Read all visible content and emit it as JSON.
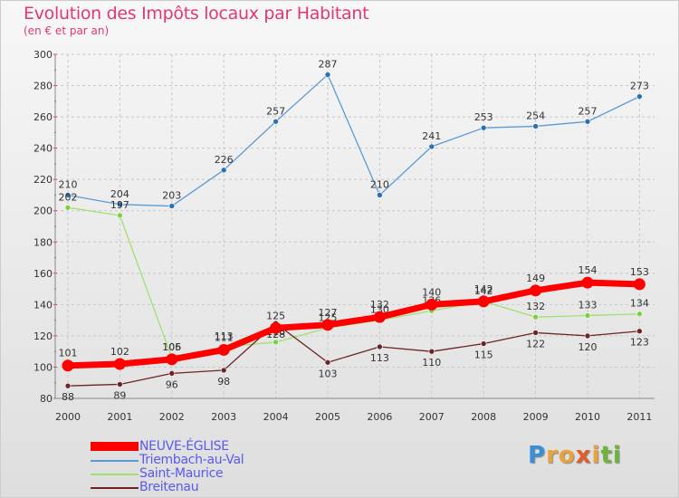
{
  "title": "Evolution des Impôts locaux par Habitant",
  "subtitle": "(en € et par an)",
  "logo": {
    "letters": [
      "P",
      "r",
      "o",
      "x",
      "i",
      "t",
      "i"
    ],
    "colors": [
      "#3a8fd8",
      "#e8a43a",
      "#e8a43a",
      "#e35d2a",
      "#e8a43a",
      "#6fb43a",
      "#6fb43a"
    ]
  },
  "chart_data": {
    "type": "line",
    "title": "Evolution des Impôts locaux par Habitant",
    "subtitle": "(en € et par an)",
    "xlabel": "",
    "ylabel": "",
    "x": [
      "2000",
      "2001",
      "2002",
      "2003",
      "2004",
      "2005",
      "2006",
      "2007",
      "2008",
      "2009",
      "2010",
      "2011"
    ],
    "ylim": [
      80,
      300
    ],
    "yticks": [
      80,
      100,
      120,
      140,
      160,
      180,
      200,
      220,
      240,
      260,
      280,
      300
    ],
    "grid": true,
    "legend_position": "bottom-left",
    "series": [
      {
        "name": "Triembach-au-Val",
        "color": "#5b9bd5",
        "marker": "#2b6fb5",
        "weight": "thin",
        "values": [
          210,
          204,
          203,
          226,
          257,
          287,
          210,
          241,
          253,
          254,
          257,
          273
        ],
        "labels": [
          "210",
          "204",
          "203",
          "226",
          "257",
          "287",
          "210",
          "241",
          "253",
          "254",
          "257",
          "273"
        ]
      },
      {
        "name": "Saint-Maurice",
        "color": "#a0e070",
        "marker": "#7bd040",
        "weight": "thin",
        "values": [
          202,
          197,
          106,
          113,
          116,
          125,
          130,
          136,
          142,
          132,
          133,
          134
        ],
        "labels": [
          "202",
          "197",
          "106",
          "113",
          "116",
          "125",
          "130",
          "136",
          "142",
          "132",
          "133",
          "134"
        ]
      },
      {
        "name": "Breitenau",
        "color": "#6b2525",
        "marker": "#6b2525",
        "weight": "thin",
        "values": [
          88,
          89,
          96,
          98,
          128,
          103,
          113,
          110,
          115,
          122,
          120,
          123
        ],
        "labels": [
          "88",
          "89",
          "96",
          "98",
          "128",
          "103",
          "113",
          "110",
          "115",
          "122",
          "120",
          "123"
        ]
      },
      {
        "name": "NEUVE-ÉGLISE",
        "color": "#ff0000",
        "marker": "#ff0000",
        "weight": "thick",
        "values": [
          101,
          102,
          105,
          111,
          125,
          127,
          132,
          140,
          142,
          149,
          154,
          153
        ],
        "labels": [
          "101",
          "102",
          "105",
          "111",
          "125",
          "127",
          "132",
          "140",
          "142",
          "149",
          "154",
          "153"
        ]
      }
    ],
    "legend_order": [
      "NEUVE-ÉGLISE",
      "Triembach-au-Val",
      "Saint-Maurice",
      "Breitenau"
    ]
  }
}
